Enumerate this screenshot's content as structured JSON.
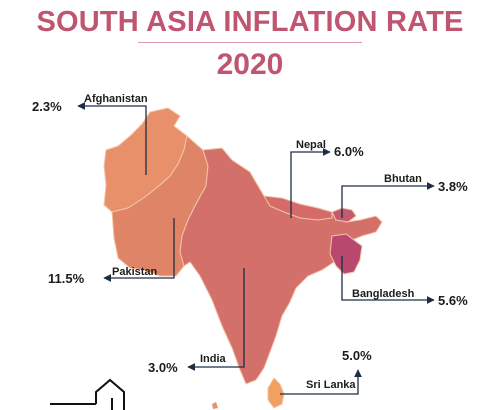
{
  "title": {
    "line1": "SOUTH ASIA INFLATION RATE",
    "line2": "2020"
  },
  "countries": [
    {
      "name": "Afghanistan",
      "value": "2.3%",
      "color": "#e8906a"
    },
    {
      "name": "Pakistan",
      "value": "11.5%",
      "color": "#e08468"
    },
    {
      "name": "Nepal",
      "value": "6.0%",
      "color": "#d46a6a"
    },
    {
      "name": "Bhutan",
      "value": "3.8%",
      "color": "#c45a6e"
    },
    {
      "name": "India",
      "value": "3.0%",
      "color": "#d4706a"
    },
    {
      "name": "Bangladesh",
      "value": "5.6%",
      "color": "#b8486e"
    },
    {
      "name": "Sri Lanka",
      "value": "5.0%",
      "color": "#f0a060"
    }
  ],
  "colors": {
    "title": "#c05570",
    "leader_line": "#1e2d45"
  }
}
